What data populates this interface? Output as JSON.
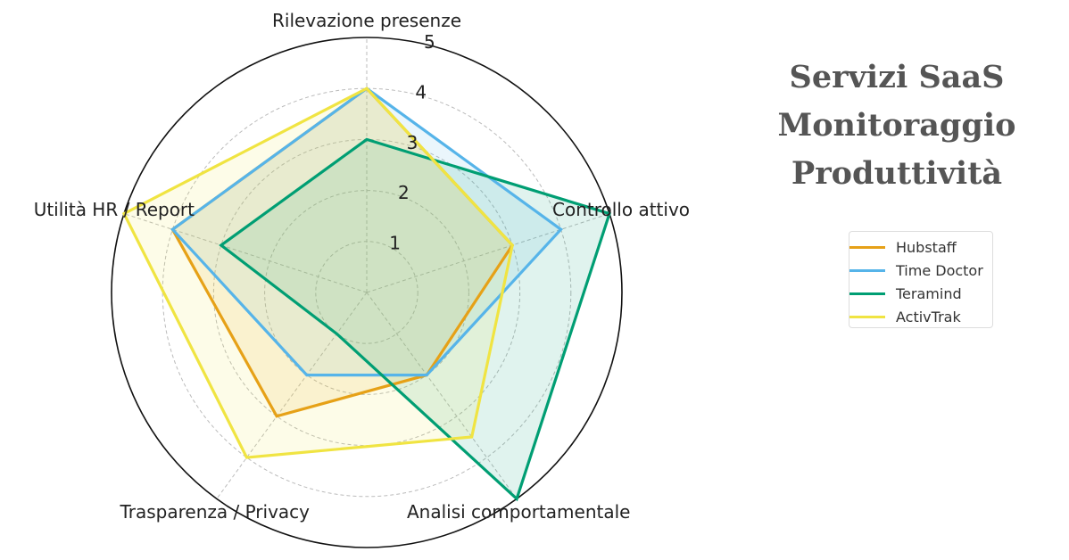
{
  "chart_data": {
    "type": "radar",
    "axes": [
      "Rilevazione presenze",
      "Controllo attivo",
      "Analisi comportamentale",
      "Trasparenza / Privacy",
      "Utilità HR / Report"
    ],
    "r_ticks": [
      "1",
      "2",
      "3",
      "4",
      "5"
    ],
    "r_max": 5,
    "grid": true,
    "series": [
      {
        "name": "Hubstaff",
        "values": [
          4,
          3,
          2,
          3,
          4
        ],
        "color": "#E6A117"
      },
      {
        "name": "Time Doctor",
        "values": [
          4,
          4,
          2,
          2,
          4
        ],
        "color": "#56B4E9"
      },
      {
        "name": "Teramind",
        "values": [
          3,
          5,
          5,
          1,
          3
        ],
        "color": "#009E73"
      },
      {
        "name": "ActivTrak",
        "values": [
          4,
          3,
          3.5,
          4,
          5
        ],
        "color": "#F0E442"
      }
    ],
    "legend_position": "right"
  },
  "side_title": {
    "line1": "Servizi SaaS",
    "line2": "Monitoraggio",
    "line3": "Produttività"
  },
  "legend": {
    "items": [
      "Hubstaff",
      "Time Doctor",
      "Teramind",
      "ActivTrak"
    ]
  }
}
